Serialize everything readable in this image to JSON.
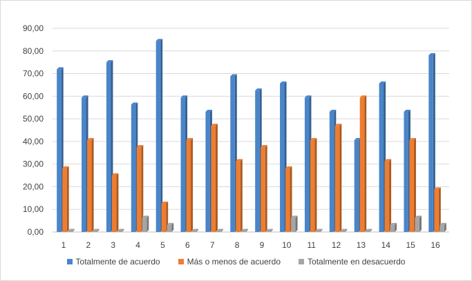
{
  "chart_data": {
    "type": "bar",
    "categories": [
      "1",
      "2",
      "3",
      "4",
      "5",
      "6",
      "7",
      "8",
      "9",
      "10",
      "11",
      "12",
      "13",
      "14",
      "15",
      "16"
    ],
    "series": [
      {
        "name": "Totalmente de acuerdo",
        "color": "#4a85c9",
        "values": [
          71.9,
          59.4,
          75.0,
          56.3,
          84.4,
          59.4,
          53.1,
          68.8,
          62.5,
          65.6,
          59.4,
          53.1,
          40.6,
          65.6,
          53.1,
          78.1
        ]
      },
      {
        "name": "Más o menos de acuerdo",
        "color": "#ed7d31",
        "values": [
          28.1,
          40.6,
          25.0,
          37.5,
          12.5,
          40.6,
          46.9,
          31.3,
          37.5,
          28.1,
          40.6,
          46.9,
          59.4,
          31.3,
          40.6,
          18.8
        ]
      },
      {
        "name": "Totalmente en desacuerdo",
        "color": "#a5a5a5",
        "values": [
          0,
          0,
          0,
          6.3,
          3.1,
          0,
          0,
          0,
          0,
          6.3,
          0,
          0,
          0,
          3.1,
          6.3,
          3.1
        ]
      }
    ],
    "y_ticks": [
      "0,00",
      "10,00",
      "20,00",
      "30,00",
      "40,00",
      "50,00",
      "60,00",
      "70,00",
      "80,00",
      "90,00"
    ],
    "ylim": [
      0,
      90
    ],
    "grid": true,
    "legend_position": "bottom"
  }
}
